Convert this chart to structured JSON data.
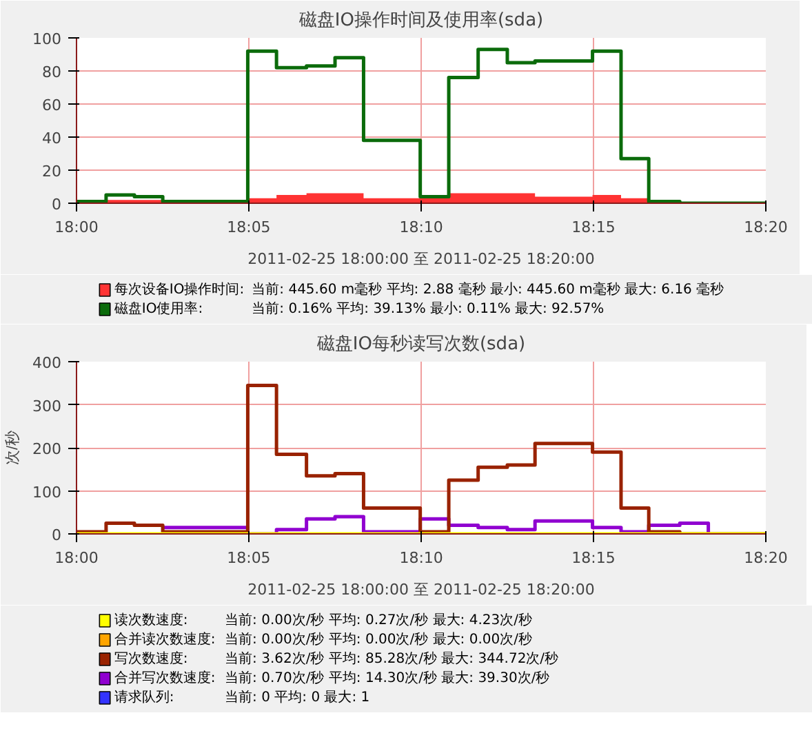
{
  "chart_data": [
    {
      "type": "step",
      "title": "磁盘IO操作时间及使用率(sda)",
      "x": [
        18.0,
        18.0143,
        18.028,
        18.0417,
        18.0555,
        18.0695,
        18.0828,
        18.0967,
        18.1112,
        18.125,
        18.1388,
        18.1528,
        18.1662,
        18.18,
        18.1942,
        18.2083,
        18.2217,
        18.2358,
        18.2495,
        18.2633,
        18.2767,
        18.2917,
        18.3055,
        18.3195,
        18.3333
      ],
      "xlim": [
        18.0,
        18.3333
      ],
      "xticks": [
        {
          "value": 18.0,
          "label": "18:00"
        },
        {
          "value": 18.0833,
          "label": "18:05"
        },
        {
          "value": 18.1667,
          "label": "18:10"
        },
        {
          "value": 18.25,
          "label": "18:15"
        },
        {
          "value": 18.3333,
          "label": "18:20"
        }
      ],
      "ylim": [
        0,
        100
      ],
      "yticks": [
        0,
        20,
        40,
        60,
        80,
        100
      ],
      "grid": true,
      "legend": "bottom",
      "annotations": [
        "2011-02-25 18:00:00 至 2011-02-25 18:20:00",
        "当前:  445.60 m毫秒    平均:   2.88  毫秒    最小:  445.60 m毫秒    最大:   6.16  毫秒",
        "当前:   0.16%    平均:  39.13%    最小:   0.11%    最大:  92.57%"
      ],
      "series": [
        {
          "name": "每次设备IO操作时间:",
          "type": "area",
          "color": "#ff3333",
          "values": [
            0,
            2,
            2,
            1,
            1,
            1,
            3,
            5,
            6,
            6,
            3,
            3,
            3,
            6,
            6,
            6,
            4,
            4,
            5,
            3,
            1,
            0,
            0,
            0,
            0
          ]
        },
        {
          "name": "磁盘IO使用率:",
          "color": "#0b6b0b",
          "values": [
            1,
            5,
            4,
            1,
            1,
            1,
            92,
            82,
            83,
            88,
            38,
            38,
            4,
            76,
            93,
            85,
            86,
            86,
            92,
            27,
            1,
            0,
            0,
            0,
            0
          ]
        }
      ]
    },
    {
      "type": "step",
      "title": "磁盘IO每秒读写次数(sda)",
      "ylabel": "次/秒",
      "x": [
        18.0,
        18.0143,
        18.028,
        18.0417,
        18.0555,
        18.0695,
        18.0828,
        18.0967,
        18.1112,
        18.125,
        18.1388,
        18.1528,
        18.1662,
        18.18,
        18.1942,
        18.2083,
        18.2217,
        18.2358,
        18.2495,
        18.2633,
        18.2767,
        18.2917,
        18.3055,
        18.3195,
        18.3333
      ],
      "xlim": [
        18.0,
        18.3333
      ],
      "xticks": [
        {
          "value": 18.0,
          "label": "18:00"
        },
        {
          "value": 18.0833,
          "label": "18:05"
        },
        {
          "value": 18.1667,
          "label": "18:10"
        },
        {
          "value": 18.25,
          "label": "18:15"
        },
        {
          "value": 18.3333,
          "label": "18:20"
        }
      ],
      "ylim": [
        0,
        400
      ],
      "yticks": [
        0,
        100,
        200,
        300,
        400
      ],
      "grid": true,
      "legend": "bottom",
      "annotations": [
        "2011-02-25 18:00:00 至 2011-02-25 18:20:00",
        "当前:   0.00次/秒    平均:   0.27次/秒    最大:   4.23次/秒",
        "当前:   0.00次/秒    平均:   0.00次/秒    最大:   0.00次/秒",
        "当前:   3.62次/秒    平均:  85.28次/秒    最大: 344.72次/秒",
        "当前:   0.70次/秒    平均:  14.30次/秒    最大:  39.30次/秒",
        "当前:      0    平均:      0    最大:      1"
      ],
      "series": [
        {
          "name": "读次数速度:",
          "color": "#ffff00",
          "values": [
            0,
            0,
            0,
            0,
            0,
            0,
            0,
            0,
            0,
            0,
            0,
            0,
            0,
            0,
            0,
            0,
            0,
            0,
            0,
            0,
            0,
            0,
            0,
            0,
            0
          ]
        },
        {
          "name": "合并读次数速度:",
          "color": "#ffa500",
          "values": [
            null,
            null,
            null,
            null,
            null,
            null,
            null,
            null,
            null,
            null,
            null,
            null,
            null,
            null,
            null,
            null,
            null,
            null,
            null,
            null,
            null,
            null,
            null,
            null,
            null
          ]
        },
        {
          "name": "写次数速度:",
          "color": "#992200",
          "values": [
            5,
            25,
            20,
            5,
            5,
            5,
            345,
            185,
            135,
            140,
            60,
            60,
            5,
            125,
            155,
            160,
            210,
            210,
            190,
            60,
            5,
            0,
            0,
            0,
            0
          ]
        },
        {
          "name": "合并写次数速度:",
          "color": "#9000d0",
          "values": [
            null,
            null,
            null,
            15,
            15,
            15,
            0,
            10,
            35,
            40,
            5,
            5,
            35,
            20,
            15,
            10,
            30,
            30,
            15,
            5,
            20,
            25,
            0,
            null,
            null
          ]
        },
        {
          "name": "请求队列:",
          "color": "#3333ff",
          "values": [
            null,
            null,
            null,
            null,
            null,
            null,
            null,
            null,
            null,
            null,
            null,
            null,
            null,
            null,
            null,
            null,
            null,
            null,
            null,
            null,
            null,
            null,
            null,
            null,
            null
          ]
        }
      ]
    }
  ]
}
